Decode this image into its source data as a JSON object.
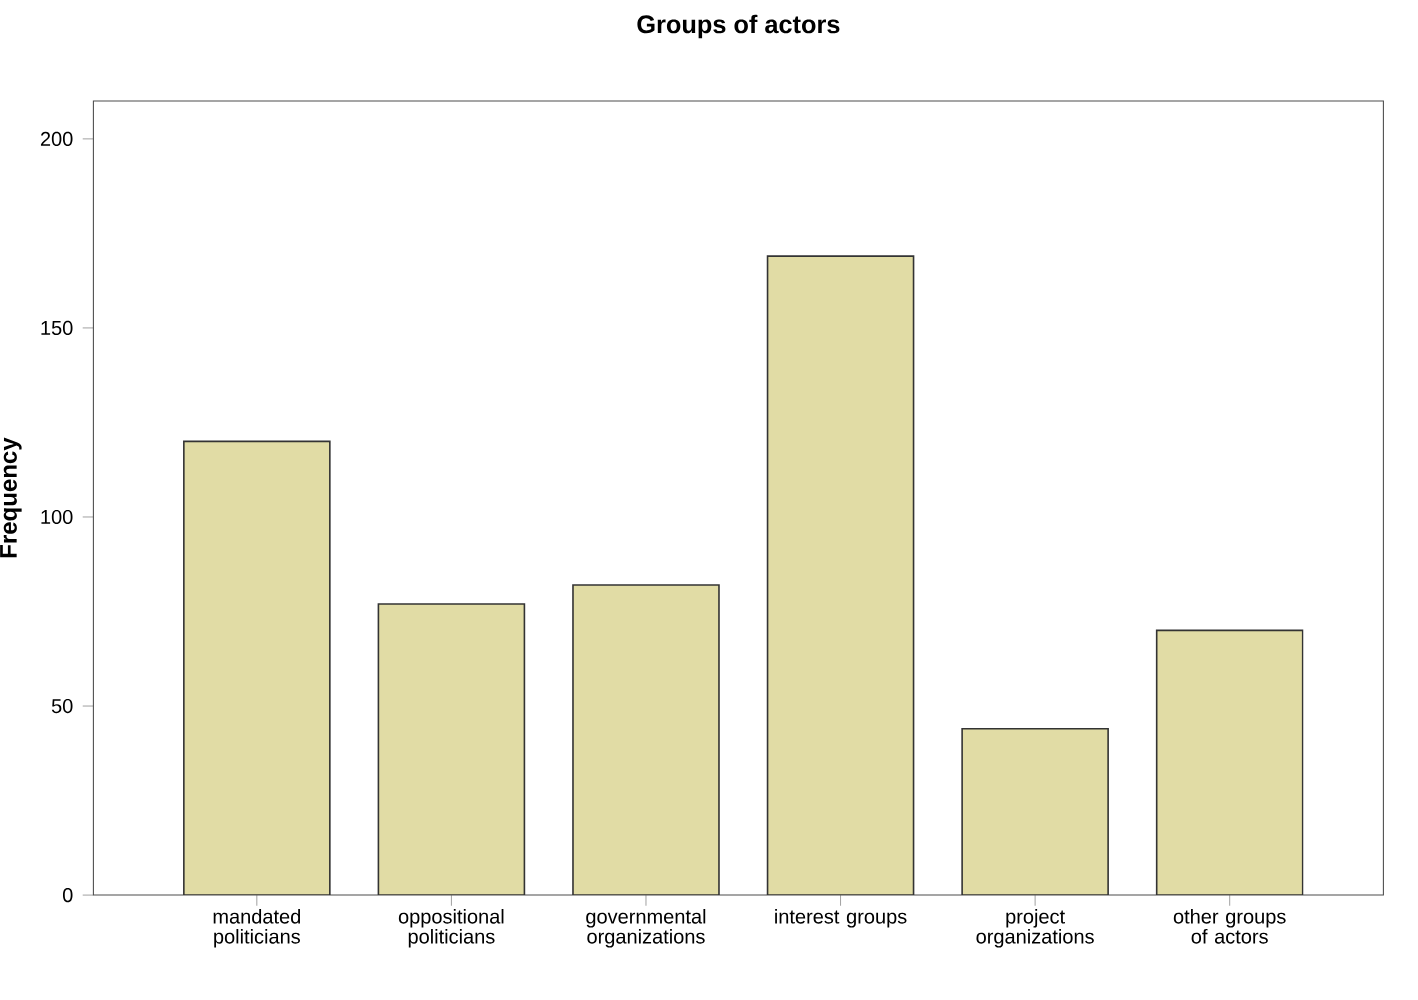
{
  "chart_data": {
    "type": "bar",
    "title": "Groups of actors",
    "ylabel": "Frequency",
    "categories": [
      "mandated politicians",
      "oppositional politicians",
      "governmental organizations",
      "interest groups",
      "project organizations",
      "other groups of actors"
    ],
    "values": [
      120,
      77,
      82,
      169,
      44,
      70
    ],
    "color": "#e1dca5",
    "ylim": [
      0,
      210
    ],
    "yticks": [
      0,
      50,
      100,
      150,
      200
    ],
    "grid": false
  }
}
